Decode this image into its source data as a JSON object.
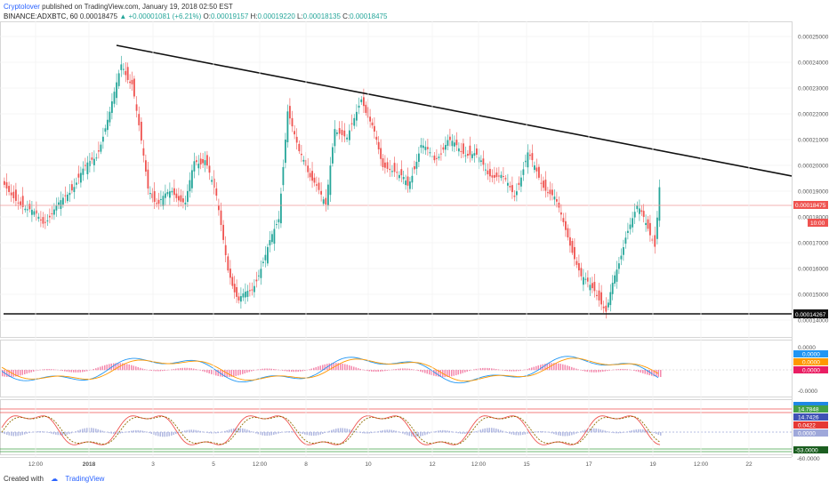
{
  "header": {
    "author": "Cryptolover",
    "published": "published on TradingView.com, January 19, 2018 02:50 EST",
    "symbol": "BINANCE:ADXBTC, 60",
    "last": "0.00018475",
    "change": "+0.00001081 (+6.21%)",
    "open_label": "O:",
    "open": "0.00019157",
    "high_label": "H:",
    "high": "0.00019220",
    "low_label": "L:",
    "low": "0.00018135",
    "close_label": "C:",
    "close": "0.00018475"
  },
  "price_axis": [
    "0.00025000",
    "0.00024000",
    "0.00023000",
    "0.00022000",
    "0.00021000",
    "0.00020000",
    "0.00019000",
    "0.00018000",
    "0.00017000",
    "0.00016000",
    "0.00015000",
    "0.00014000"
  ],
  "price_tags": {
    "current": "0.00018475",
    "countdown": "10:00",
    "support": "0.00014267"
  },
  "macd_axis": {
    "top": "0.0000",
    "bottom": "-0.0000"
  },
  "macd_tags": [
    "0.0000",
    "0.0000",
    "0.0000"
  ],
  "stoch_tags": [
    "14.7848",
    "14.7426",
    "0.0422",
    "0.0000"
  ],
  "stoch_axis_bottom": [
    "-53.0000",
    "-60.0000"
  ],
  "time_axis": [
    "12:00",
    "2018",
    "3",
    "5",
    "12:00",
    "8",
    "10",
    "12",
    "12:00",
    "15",
    "17",
    "19",
    "12:00",
    "22"
  ],
  "colors": {
    "up": "#26a69a",
    "down": "#ef5350",
    "macd": "#2196f3",
    "signal": "#ff9800",
    "hist": "#f06292"
  },
  "footer": {
    "created": "Created with",
    "brand": "TradingView"
  }
}
